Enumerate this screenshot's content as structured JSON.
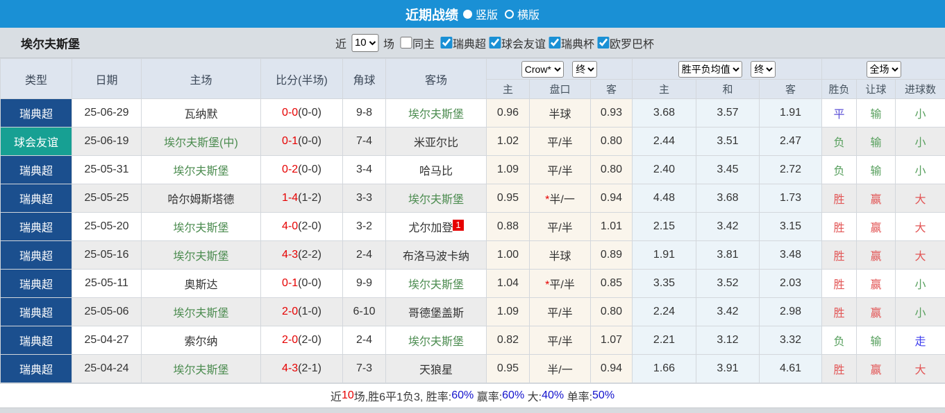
{
  "colors": {
    "top_bar_blue": "#1a90d5",
    "league_badge_navy": "#1b4f8e",
    "friendly_badge_teal": "#17a093",
    "team_green": "#4c8c50",
    "score_red": "#e60000",
    "win_red": "#e25555",
    "lose_green": "#58a05e",
    "draw_violet": "#5b4fd6",
    "push_blue": "#3d3dee",
    "percent_blue": "#1111cc"
  },
  "title_bar": {
    "title": "近期战绩",
    "layout_options": [
      {
        "label": "竖版",
        "selected": true
      },
      {
        "label": "横版",
        "selected": false
      }
    ]
  },
  "filter_bar": {
    "team_name": "埃尔夫斯堡",
    "recent_label": "近",
    "recent_count": "10",
    "games_label": "场",
    "same_home": {
      "label": "同主",
      "checked": false
    },
    "leagues": [
      {
        "label": "瑞典超",
        "checked": true
      },
      {
        "label": "球会友谊",
        "checked": true
      },
      {
        "label": "瑞典杯",
        "checked": true
      },
      {
        "label": "欧罗巴杯",
        "checked": true
      }
    ]
  },
  "table": {
    "columns": [
      "类型",
      "日期",
      "主场",
      "比分(半场)",
      "角球",
      "客场"
    ],
    "selects": {
      "bookmaker": "Crow*",
      "bookmaker_time": "终",
      "odds_type": "胜平负均值",
      "odds_time": "终",
      "scope": "全场"
    },
    "sub_columns": [
      "主",
      "盘口",
      "客",
      "主",
      "和",
      "客",
      "胜负",
      "让球",
      "进球数"
    ],
    "rows": [
      {
        "type": "瑞典超",
        "type_style": "navy",
        "date": "25-06-29",
        "home": "瓦纳默",
        "home_green": false,
        "score_ft": "0-0",
        "score_ht": "(0-0)",
        "corner": "9-8",
        "away": "埃尔夫斯堡",
        "away_green": true,
        "away_badge": "",
        "hdp_star": "",
        "hdp_home": "0.96",
        "hdp_line": "半球",
        "hdp_away": "0.93",
        "eu_home": "3.68",
        "eu_draw": "3.57",
        "eu_away": "1.91",
        "res_wdl": {
          "text": "平",
          "cls": "draw"
        },
        "res_hdp": {
          "text": "输",
          "cls": "lose"
        },
        "res_goal": {
          "text": "小",
          "cls": "lose"
        }
      },
      {
        "type": "球会友谊",
        "type_style": "teal",
        "date": "25-06-19",
        "home": "埃尔夫斯堡(中)",
        "home_green": true,
        "score_ft": "0-1",
        "score_ht": "(0-0)",
        "corner": "7-4",
        "away": "米亚尔比",
        "away_green": false,
        "away_badge": "",
        "hdp_star": "",
        "hdp_home": "1.02",
        "hdp_line": "平/半",
        "hdp_away": "0.80",
        "eu_home": "2.44",
        "eu_draw": "3.51",
        "eu_away": "2.47",
        "res_wdl": {
          "text": "负",
          "cls": "lose"
        },
        "res_hdp": {
          "text": "输",
          "cls": "lose"
        },
        "res_goal": {
          "text": "小",
          "cls": "lose"
        }
      },
      {
        "type": "瑞典超",
        "type_style": "navy",
        "date": "25-05-31",
        "home": "埃尔夫斯堡",
        "home_green": true,
        "score_ft": "0-2",
        "score_ht": "(0-0)",
        "corner": "3-4",
        "away": "哈马比",
        "away_green": false,
        "away_badge": "",
        "hdp_star": "",
        "hdp_home": "1.09",
        "hdp_line": "平/半",
        "hdp_away": "0.80",
        "eu_home": "2.40",
        "eu_draw": "3.45",
        "eu_away": "2.72",
        "res_wdl": {
          "text": "负",
          "cls": "lose"
        },
        "res_hdp": {
          "text": "输",
          "cls": "lose"
        },
        "res_goal": {
          "text": "小",
          "cls": "lose"
        }
      },
      {
        "type": "瑞典超",
        "type_style": "navy",
        "date": "25-05-25",
        "home": "哈尔姆斯塔德",
        "home_green": false,
        "score_ft": "1-4",
        "score_ht": "(1-2)",
        "corner": "3-3",
        "away": "埃尔夫斯堡",
        "away_green": true,
        "away_badge": "",
        "hdp_star": "*",
        "hdp_home": "0.95",
        "hdp_line": "半/一",
        "hdp_away": "0.94",
        "eu_home": "4.48",
        "eu_draw": "3.68",
        "eu_away": "1.73",
        "res_wdl": {
          "text": "胜",
          "cls": "win"
        },
        "res_hdp": {
          "text": "赢",
          "cls": "win"
        },
        "res_goal": {
          "text": "大",
          "cls": "win"
        }
      },
      {
        "type": "瑞典超",
        "type_style": "navy",
        "date": "25-05-20",
        "home": "埃尔夫斯堡",
        "home_green": true,
        "score_ft": "4-0",
        "score_ht": "(2-0)",
        "corner": "3-2",
        "away": "尤尔加登",
        "away_green": false,
        "away_badge": "1",
        "hdp_star": "",
        "hdp_home": "0.88",
        "hdp_line": "平/半",
        "hdp_away": "1.01",
        "eu_home": "2.15",
        "eu_draw": "3.42",
        "eu_away": "3.15",
        "res_wdl": {
          "text": "胜",
          "cls": "win"
        },
        "res_hdp": {
          "text": "赢",
          "cls": "win"
        },
        "res_goal": {
          "text": "大",
          "cls": "win"
        }
      },
      {
        "type": "瑞典超",
        "type_style": "navy",
        "date": "25-05-16",
        "home": "埃尔夫斯堡",
        "home_green": true,
        "score_ft": "4-3",
        "score_ht": "(2-2)",
        "corner": "2-4",
        "away": "布洛马波卡纳",
        "away_green": false,
        "away_badge": "",
        "hdp_star": "",
        "hdp_home": "1.00",
        "hdp_line": "半球",
        "hdp_away": "0.89",
        "eu_home": "1.91",
        "eu_draw": "3.81",
        "eu_away": "3.48",
        "res_wdl": {
          "text": "胜",
          "cls": "win"
        },
        "res_hdp": {
          "text": "赢",
          "cls": "win"
        },
        "res_goal": {
          "text": "大",
          "cls": "win"
        }
      },
      {
        "type": "瑞典超",
        "type_style": "navy",
        "date": "25-05-11",
        "home": "奥斯达",
        "home_green": false,
        "score_ft": "0-1",
        "score_ht": "(0-0)",
        "corner": "9-9",
        "away": "埃尔夫斯堡",
        "away_green": true,
        "away_badge": "",
        "hdp_star": "*",
        "hdp_home": "1.04",
        "hdp_line": "平/半",
        "hdp_away": "0.85",
        "eu_home": "3.35",
        "eu_draw": "3.52",
        "eu_away": "2.03",
        "res_wdl": {
          "text": "胜",
          "cls": "win"
        },
        "res_hdp": {
          "text": "赢",
          "cls": "win"
        },
        "res_goal": {
          "text": "小",
          "cls": "lose"
        }
      },
      {
        "type": "瑞典超",
        "type_style": "navy",
        "date": "25-05-06",
        "home": "埃尔夫斯堡",
        "home_green": true,
        "score_ft": "2-0",
        "score_ht": "(1-0)",
        "corner": "6-10",
        "away": "哥德堡盖斯",
        "away_green": false,
        "away_badge": "",
        "hdp_star": "",
        "hdp_home": "1.09",
        "hdp_line": "平/半",
        "hdp_away": "0.80",
        "eu_home": "2.24",
        "eu_draw": "3.42",
        "eu_away": "2.98",
        "res_wdl": {
          "text": "胜",
          "cls": "win"
        },
        "res_hdp": {
          "text": "赢",
          "cls": "win"
        },
        "res_goal": {
          "text": "小",
          "cls": "lose"
        }
      },
      {
        "type": "瑞典超",
        "type_style": "navy",
        "date": "25-04-27",
        "home": "索尔纳",
        "home_green": false,
        "score_ft": "2-0",
        "score_ht": "(2-0)",
        "corner": "2-4",
        "away": "埃尔夫斯堡",
        "away_green": true,
        "away_badge": "",
        "hdp_star": "",
        "hdp_home": "0.82",
        "hdp_line": "平/半",
        "hdp_away": "1.07",
        "eu_home": "2.21",
        "eu_draw": "3.12",
        "eu_away": "3.32",
        "res_wdl": {
          "text": "负",
          "cls": "lose"
        },
        "res_hdp": {
          "text": "输",
          "cls": "lose"
        },
        "res_goal": {
          "text": "走",
          "cls": "push"
        }
      },
      {
        "type": "瑞典超",
        "type_style": "navy",
        "date": "25-04-24",
        "home": "埃尔夫斯堡",
        "home_green": true,
        "score_ft": "4-3",
        "score_ht": "(2-1)",
        "corner": "7-3",
        "away": "天狼星",
        "away_green": false,
        "away_badge": "",
        "hdp_star": "",
        "hdp_home": "0.95",
        "hdp_line": "半/一",
        "hdp_away": "0.94",
        "eu_home": "1.66",
        "eu_draw": "3.91",
        "eu_away": "4.61",
        "res_wdl": {
          "text": "胜",
          "cls": "win"
        },
        "res_hdp": {
          "text": "赢",
          "cls": "win"
        },
        "res_goal": {
          "text": "大",
          "cls": "win"
        }
      }
    ]
  },
  "footer": {
    "segments": [
      {
        "text": "近",
        "cls": "d"
      },
      {
        "text": "10",
        "cls": "r"
      },
      {
        "text": "场,胜6平1负3, 胜率:",
        "cls": "d"
      },
      {
        "text": "60%",
        "cls": "b"
      },
      {
        "text": " 赢率:",
        "cls": "d"
      },
      {
        "text": "60%",
        "cls": "b"
      },
      {
        "text": " 大:",
        "cls": "d"
      },
      {
        "text": "40%",
        "cls": "b"
      },
      {
        "text": " 单率:",
        "cls": "d"
      },
      {
        "text": "50%",
        "cls": "b"
      }
    ]
  }
}
